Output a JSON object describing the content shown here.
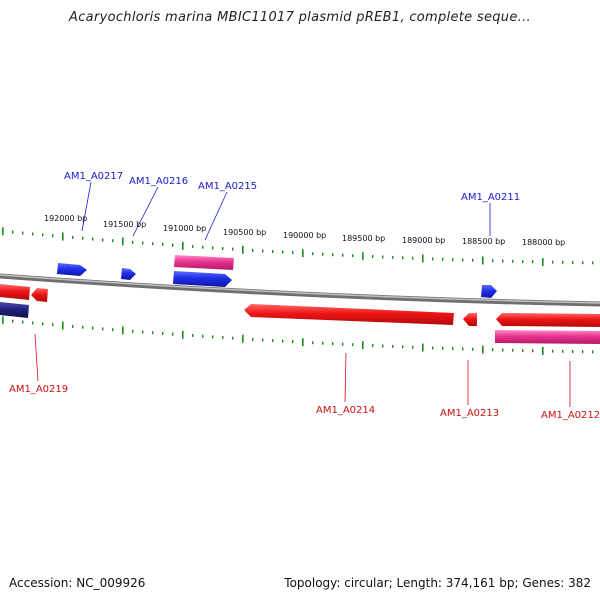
{
  "title": "Acaryochloris marina MBIC11017 plasmid pREB1, complete seque...",
  "footer": {
    "accession": "Accession: NC_009926",
    "summary": "Topology: circular; Length: 374,161 bp; Genes: 382"
  },
  "colors": {
    "forward_gene": "#1f2ee8",
    "reverse_gene": "#ee1515",
    "rna_gene": "#e8338f",
    "other_gene": "#20207a",
    "backbone": "#8c8c8c",
    "ticks": "#1a8c1a",
    "forward_label": "#1a1acc",
    "reverse_label": "#cc1111"
  },
  "coordinates": [
    "192000 bp",
    "191500 bp",
    "191000 bp",
    "190500 bp",
    "190000 bp",
    "189500 bp",
    "189000 bp",
    "188500 bp",
    "188000 bp"
  ],
  "labels": {
    "forward": [
      "AM1_A0217",
      "AM1_A0216",
      "AM1_A0215",
      "AM1_A0211"
    ],
    "reverse": [
      "AM1_A0219",
      "AM1_A0214",
      "AM1_A0213",
      "AM1_A0212"
    ]
  }
}
